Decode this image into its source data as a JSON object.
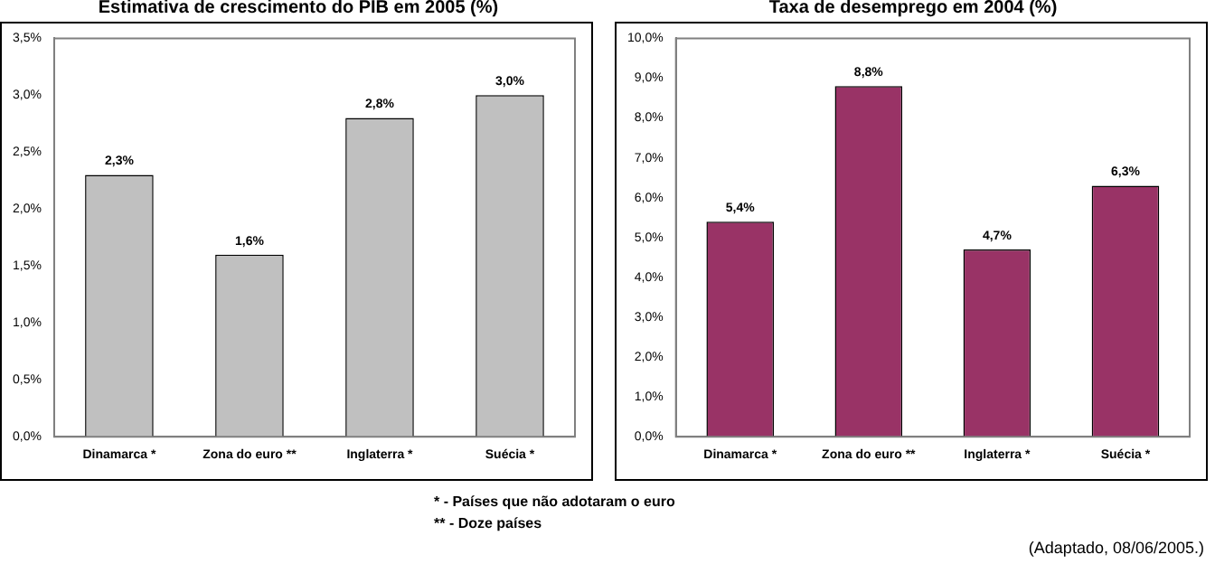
{
  "chart_data": [
    {
      "type": "bar",
      "title": "Estimativa de crescimento do PIB em 2005 (%)",
      "categories": [
        "Dinamarca *",
        "Zona do euro **",
        "Inglaterra *",
        "Suécia *"
      ],
      "values": [
        2.3,
        1.6,
        2.8,
        3.0
      ],
      "value_labels": [
        "2,3%",
        "1,6%",
        "2,8%",
        "3,0%"
      ],
      "color": "#c0c0c0",
      "ylim": [
        0,
        3.5
      ],
      "yticks": [
        {
          "value": 0,
          "label": "0,0%"
        },
        {
          "value": 0.5,
          "label": "0,5%"
        },
        {
          "value": 1,
          "label": "1,0%"
        },
        {
          "value": 1.5,
          "label": "1,5%"
        },
        {
          "value": 2,
          "label": "2,0%"
        },
        {
          "value": 2.5,
          "label": "2,5%"
        },
        {
          "value": 3,
          "label": "3,0%"
        },
        {
          "value": 3.5,
          "label": "3,5%"
        }
      ]
    },
    {
      "type": "bar",
      "title": "Taxa de desemprego em 2004 (%)",
      "categories": [
        "Dinamarca *",
        "Zona do euro **",
        "Inglaterra *",
        "Suécia *"
      ],
      "values": [
        5.4,
        8.8,
        4.7,
        6.3
      ],
      "value_labels": [
        "5,4%",
        "8,8%",
        "4,7%",
        "6,3%"
      ],
      "color": "#993366",
      "ylim": [
        0,
        10
      ],
      "yticks": [
        {
          "value": 0,
          "label": "0,0%"
        },
        {
          "value": 1,
          "label": "1,0%"
        },
        {
          "value": 2,
          "label": "2,0%"
        },
        {
          "value": 3,
          "label": "3,0%"
        },
        {
          "value": 4,
          "label": "4,0%"
        },
        {
          "value": 5,
          "label": "5,0%"
        },
        {
          "value": 6,
          "label": "6,0%"
        },
        {
          "value": 7,
          "label": "7,0%"
        },
        {
          "value": 8,
          "label": "8,0%"
        },
        {
          "value": 9,
          "label": "9,0%"
        },
        {
          "value": 10,
          "label": "10,0%"
        }
      ],
      "annotations": [
        "* - Países que não adotaram o euro",
        "** - Doze países",
        "(Adaptado, 08/06/2005.)"
      ]
    }
  ]
}
